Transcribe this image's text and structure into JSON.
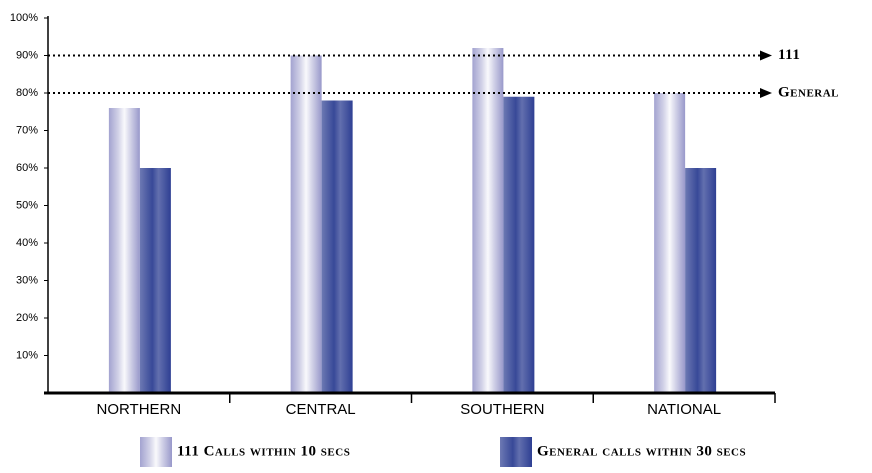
{
  "chart_data": {
    "type": "bar",
    "categories": [
      "NORTHERN",
      "CENTRAL",
      "SOUTHERN",
      "NATIONAL"
    ],
    "series": [
      {
        "name": "111 Calls within 10 secs",
        "color": "#8c8cc4",
        "values": [
          76,
          90,
          92,
          80
        ]
      },
      {
        "name": "General calls within 30 secs",
        "color": "#2e3f93",
        "values": [
          60,
          78,
          79,
          60
        ]
      }
    ],
    "ylim": [
      0,
      100
    ],
    "yticks": [
      {
        "value": 10,
        "label": "10%"
      },
      {
        "value": 20,
        "label": "20%"
      },
      {
        "value": 30,
        "label": "30%"
      },
      {
        "value": 40,
        "label": "40%"
      },
      {
        "value": 50,
        "label": "50%"
      },
      {
        "value": 60,
        "label": "60%"
      },
      {
        "value": 70,
        "label": "70%"
      },
      {
        "value": 80,
        "label": "80%"
      },
      {
        "value": 90,
        "label": "90%"
      },
      {
        "value": 100,
        "label": "100%"
      }
    ],
    "reference_lines": [
      {
        "value": 90,
        "label": "111"
      },
      {
        "value": 80,
        "label": "General"
      }
    ]
  }
}
